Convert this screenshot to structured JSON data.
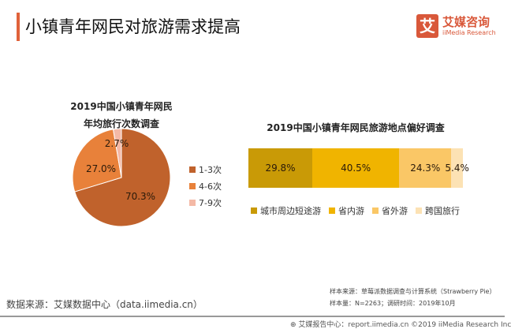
{
  "header": {
    "title": "小镇青年网民对旅游需求提高",
    "logo_cn": "艾媒咨询",
    "logo_en": "iiMedia Research",
    "logo_mark": "艾"
  },
  "chart_data": [
    {
      "type": "pie",
      "title_lines": [
        "2019中国小镇青年网民",
        "年均旅行次数调查"
      ],
      "categories": [
        "1-3次",
        "4-6次",
        "7-9次"
      ],
      "values": [
        70.3,
        27.0,
        2.7
      ],
      "labels": [
        "70.3%",
        "27.0%",
        "2.7%"
      ],
      "colors": [
        "#C0622C",
        "#E8813A",
        "#F4B9A6"
      ],
      "legend_placement": "right"
    },
    {
      "type": "bar",
      "stacked": true,
      "orientation": "horizontal",
      "title": "2019中国小镇青年网民旅游地点偏好调查",
      "categories": [
        "城市周边短途游",
        "省内游",
        "省外游",
        "跨国旅行"
      ],
      "values": [
        29.8,
        40.5,
        24.3,
        5.4
      ],
      "labels": [
        "29.8%",
        "40.5%",
        "24.3%",
        "5.4%"
      ],
      "colors": [
        "#C99A06",
        "#F0B400",
        "#FAC766",
        "#FCE2B4"
      ],
      "legend_placement": "bottom"
    }
  ],
  "footer": {
    "source": "数据来源：艾媒数据中心（data.iimedia.cn）",
    "sample_source": "样本来源：草莓派数据调查与计算系统（Strawberry Pie）",
    "sample_size": "样本量：N=2263；调研时间：2019年10月",
    "copyright": "艾媒报告中心：report.iimedia.cn ©2019 iiMedia Research Inc"
  }
}
